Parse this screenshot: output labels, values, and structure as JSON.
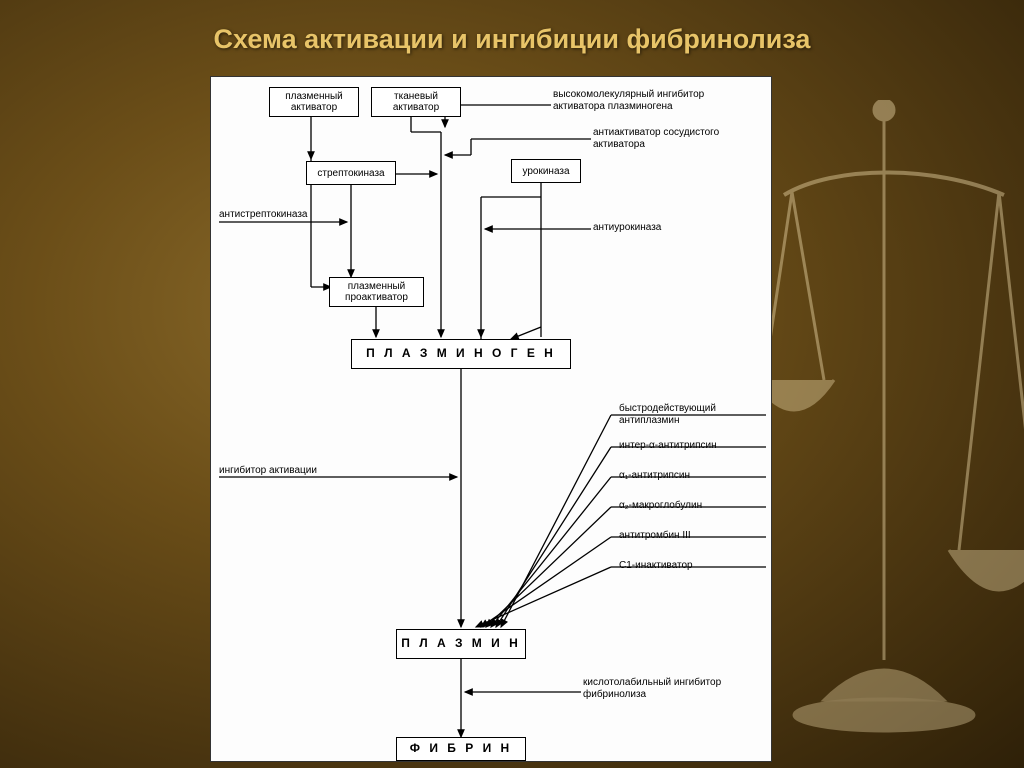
{
  "slide": {
    "title": "Схема активации и ингибиции фибринолиза",
    "title_color": "#e8c468",
    "background_gradient": [
      "#8a6a2a",
      "#6b4e18",
      "#4a3510",
      "#2e2008"
    ]
  },
  "diagram": {
    "type": "flowchart",
    "background_color": "#fdfdfd",
    "box_border_color": "#000000",
    "arrow_color": "#000000",
    "font_size_box": 10,
    "font_size_big": 12,
    "nodes": {
      "plasma_activator": "плазменный\nактиватор",
      "tissue_activator": "тканевый\nактиватор",
      "streptokinase": "стрептокиназа",
      "urokinase": "урокиназа",
      "plasma_proactivator": "плазменный\nпроактиватор",
      "plasminogen": "П Л А З М И Н О Г Е Н",
      "plasmin": "П Л А З М И Н",
      "fibrin": "Ф И Б Р И Н"
    },
    "labels": {
      "hmw_inhibitor": "высокомолекулярный ингибитор\nактиватора плазминогена",
      "antiactivator": "антиактиватор сосудистого\nактиватора",
      "antistreptokinase": "антистрептокиназа",
      "antiurokinase": "антиурокиназа",
      "activation_inhibitor": "ингибитор активации",
      "fast_antiplasmin": "быстродействующий\nантиплазмин",
      "inter_a_antitrypsin": "интер-α-антитрипсин",
      "a1_antitrypsin": "α₁-антитрипсин",
      "a2_macroglobulin": "α₂-макроглобулин",
      "antithrombin3": "антитромбин III",
      "c1_inactivator": "С1-инактиватор",
      "acid_labile": "кислотолабильный ингибитор\nфибринолиза"
    }
  }
}
